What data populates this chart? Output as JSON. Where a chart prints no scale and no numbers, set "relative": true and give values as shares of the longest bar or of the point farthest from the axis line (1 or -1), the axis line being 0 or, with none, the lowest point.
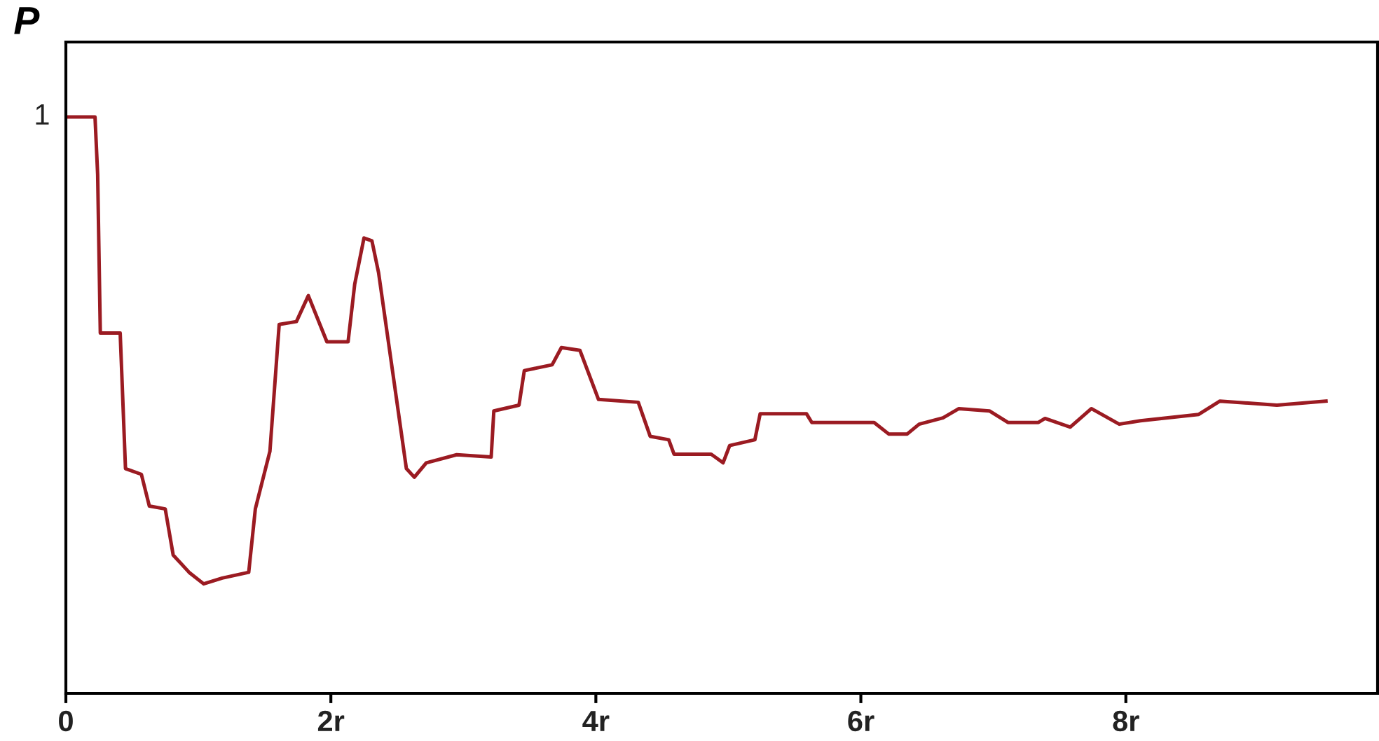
{
  "chart_data": {
    "type": "line",
    "ylabel": "P",
    "xlim": [
      0,
      9.9
    ],
    "xticks": [
      0,
      {
        "value": 2,
        "label": "2r"
      },
      {
        "value": 4,
        "label": "4r"
      },
      {
        "value": 6,
        "label": "6r"
      },
      {
        "value": 8,
        "label": "8r"
      }
    ],
    "relative": true,
    "annotations": [
      "1"
    ],
    "grid": false,
    "marker": "none",
    "line_style": "solid",
    "series": [
      {
        "color": "#9b1b22",
        "x": [
          0,
          0.22,
          0.24,
          0.26,
          0.41,
          0.45,
          0.57,
          0.63,
          0.75,
          0.81,
          0.93,
          1.04,
          1.18,
          1.38,
          1.43,
          1.54,
          1.61,
          1.74,
          1.83,
          1.97,
          2.13,
          2.18,
          2.25,
          2.31,
          2.36,
          2.57,
          2.63,
          2.72,
          2.95,
          3.21,
          3.23,
          3.42,
          3.46,
          3.67,
          3.74,
          3.88,
          4.02,
          4.32,
          4.41,
          4.55,
          4.59,
          4.87,
          4.96,
          5.01,
          5.2,
          5.24,
          5.59,
          5.63,
          6.1,
          6.21,
          6.35,
          6.44,
          6.62,
          6.74,
          6.97,
          7.11,
          7.34,
          7.39,
          7.58,
          7.74,
          7.95,
          8.11,
          8.55,
          8.71,
          9.14,
          9.51
        ],
        "values": [
          1.0,
          1.0,
          0.9,
          0.625,
          0.625,
          0.39,
          0.38,
          0.325,
          0.32,
          0.24,
          0.21,
          0.19,
          0.2,
          0.21,
          0.32,
          0.42,
          0.64,
          0.645,
          0.69,
          0.61,
          0.61,
          0.71,
          0.79,
          0.785,
          0.73,
          0.39,
          0.375,
          0.4,
          0.414,
          0.41,
          0.49,
          0.5,
          0.56,
          0.57,
          0.6,
          0.595,
          0.51,
          0.505,
          0.446,
          0.44,
          0.415,
          0.415,
          0.4,
          0.43,
          0.44,
          0.485,
          0.485,
          0.47,
          0.47,
          0.45,
          0.45,
          0.467,
          0.478,
          0.494,
          0.49,
          0.47,
          0.47,
          0.477,
          0.462,
          0.494,
          0.467,
          0.473,
          0.484,
          0.507,
          0.5,
          0.507
        ]
      }
    ]
  }
}
